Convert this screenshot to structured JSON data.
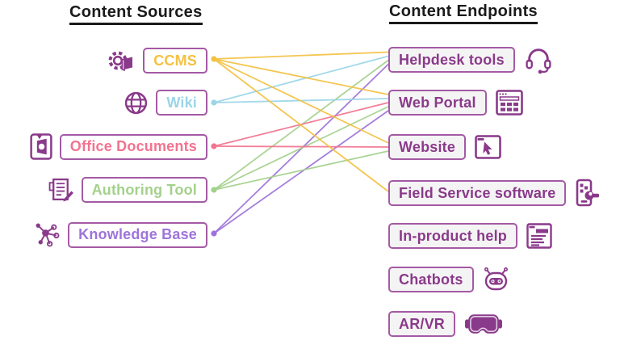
{
  "headings": {
    "sources": "Content Sources",
    "endpoints": "Content Endpoints"
  },
  "theme": {
    "purple": "#8A3A8A",
    "box_border": "#A45AA4",
    "endpoint_bg": "#F5F4F5",
    "heading_color": "#1A1A1A",
    "background": "#FFFFFF"
  },
  "sources": [
    {
      "id": "ccms",
      "label": "CCMS",
      "color": "#F4C142",
      "icon": "gear-book-icon"
    },
    {
      "id": "wiki",
      "label": "Wiki",
      "color": "#9BD5E8",
      "icon": "globe-icon"
    },
    {
      "id": "office",
      "label": "Office Documents",
      "color": "#F2738F",
      "icon": "office-document-icon"
    },
    {
      "id": "authoring",
      "label": "Authoring Tool",
      "color": "#A3D18C",
      "icon": "notepad-pencil-icon"
    },
    {
      "id": "knowledge",
      "label": "Knowledge Base",
      "color": "#9E74DA",
      "icon": "network-nodes-icon"
    }
  ],
  "endpoints": [
    {
      "id": "helpdesk-tools",
      "label": "Helpdesk tools",
      "icon": "headset-icon"
    },
    {
      "id": "web-portal",
      "label": "Web Portal",
      "icon": "browser-grid-icon"
    },
    {
      "id": "website",
      "label": "Website",
      "icon": "browser-cursor-icon"
    },
    {
      "id": "field-service",
      "label": "Field Service software",
      "icon": "mobile-wrench-icon"
    },
    {
      "id": "in-product-help",
      "label": "In-product help",
      "icon": "help-panel-icon"
    },
    {
      "id": "chatbots",
      "label": "Chatbots",
      "icon": "robot-icon"
    },
    {
      "id": "ar-vr",
      "label": "AR/VR",
      "icon": "vr-goggles-icon"
    }
  ],
  "connections": [
    {
      "from": "ccms",
      "to": "helpdesk-tools"
    },
    {
      "from": "ccms",
      "to": "web-portal"
    },
    {
      "from": "ccms",
      "to": "website"
    },
    {
      "from": "ccms",
      "to": "field-service"
    },
    {
      "from": "wiki",
      "to": "helpdesk-tools"
    },
    {
      "from": "wiki",
      "to": "web-portal"
    },
    {
      "from": "office",
      "to": "web-portal"
    },
    {
      "from": "office",
      "to": "website"
    },
    {
      "from": "authoring",
      "to": "helpdesk-tools"
    },
    {
      "from": "authoring",
      "to": "web-portal"
    },
    {
      "from": "authoring",
      "to": "website"
    },
    {
      "from": "knowledge",
      "to": "helpdesk-tools"
    },
    {
      "from": "knowledge",
      "to": "web-portal"
    }
  ]
}
